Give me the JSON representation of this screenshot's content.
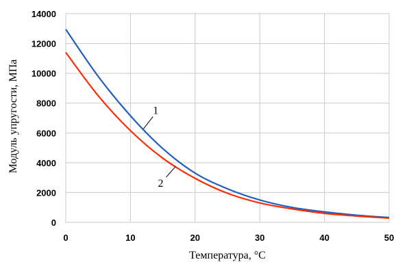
{
  "chart_data": {
    "type": "line",
    "title": "",
    "xlabel": "Температура, °С",
    "ylabel": "Модуль упругости, МПа",
    "xlim": [
      0,
      50
    ],
    "ylim": [
      0,
      14000
    ],
    "x_ticks": [
      0,
      10,
      20,
      30,
      40,
      50
    ],
    "y_ticks": [
      0,
      2000,
      4000,
      6000,
      8000,
      10000,
      12000,
      14000
    ],
    "grid": true,
    "legend": "none",
    "x": [
      0,
      5,
      10,
      15,
      20,
      25,
      30,
      35,
      40,
      45,
      50
    ],
    "series": [
      {
        "name": "1",
        "color": "#1f5fbf",
        "values": [
          12950,
          9800,
          7150,
          4950,
          3300,
          2250,
          1500,
          1000,
          700,
          480,
          320
        ]
      },
      {
        "name": "2",
        "color": "#ff2a00",
        "values": [
          11400,
          8500,
          6150,
          4300,
          2950,
          1950,
          1300,
          900,
          600,
          420,
          280
        ]
      }
    ],
    "curve_labels": [
      {
        "text": "1",
        "series": 0,
        "at_x": 12
      },
      {
        "text": "2",
        "series": 1,
        "at_x": 17
      }
    ]
  }
}
